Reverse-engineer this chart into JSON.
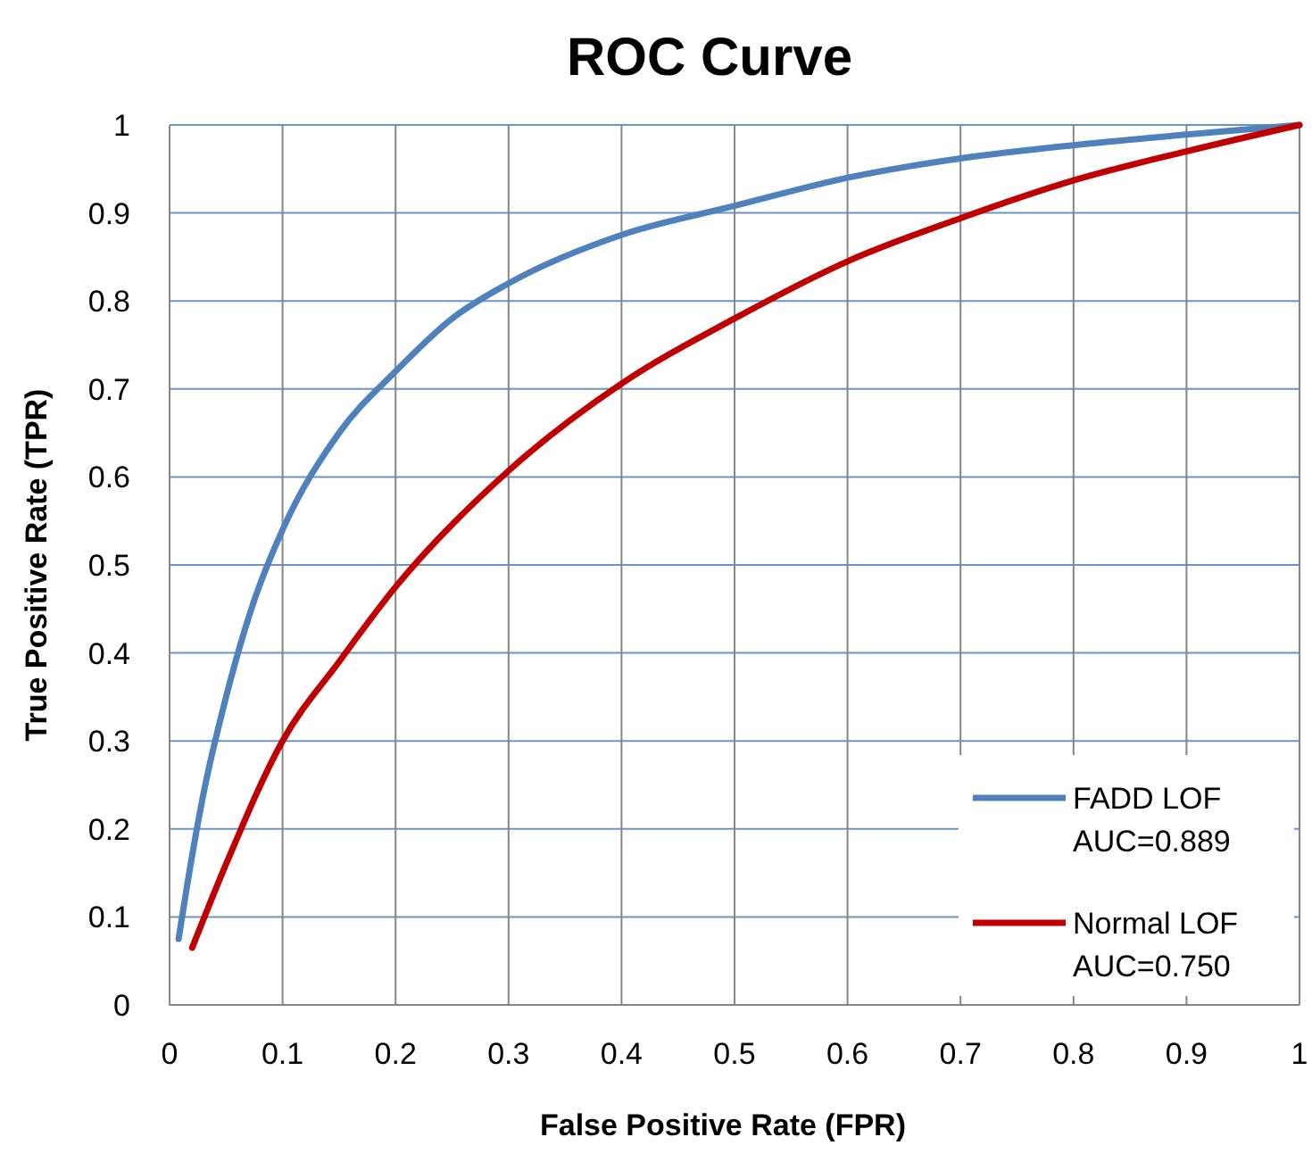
{
  "chart_data": {
    "type": "line",
    "title": "ROC Curve",
    "xlabel": "False Positive Rate (FPR)",
    "ylabel": "True Positive Rate (TPR)",
    "xlim": [
      0,
      1
    ],
    "ylim": [
      0,
      1
    ],
    "xticks": [
      0,
      0.1,
      0.2,
      0.3,
      0.4,
      0.5,
      0.6,
      0.7,
      0.8,
      0.9,
      1
    ],
    "yticks": [
      0,
      0.1,
      0.2,
      0.3,
      0.4,
      0.5,
      0.6,
      0.7,
      0.8,
      0.9,
      1
    ],
    "grid": true,
    "legend": "bottom right",
    "marker": "none",
    "line_style": "solid",
    "series": [
      {
        "name": "FADD LOF\nAUC=0.889",
        "color": "#4f81bd",
        "x": [
          0.008,
          0.02,
          0.03,
          0.05,
          0.075,
          0.1,
          0.15,
          0.2,
          0.25,
          0.3,
          0.4,
          0.5,
          0.6,
          0.7,
          0.8,
          0.9,
          1
        ],
        "values": [
          0.075,
          0.17,
          0.24,
          0.35,
          0.46,
          0.54,
          0.65,
          0.72,
          0.78,
          0.82,
          0.875,
          0.908,
          0.94,
          0.962,
          0.977,
          0.989,
          1
        ]
      },
      {
        "name": "Normal LOF\nAUC=0.750",
        "color": "#c00000",
        "x": [
          0.02,
          0.05,
          0.1,
          0.15,
          0.2,
          0.3,
          0.4,
          0.5,
          0.6,
          0.7,
          0.8,
          0.9,
          1
        ],
        "values": [
          0.065,
          0.16,
          0.3,
          0.39,
          0.475,
          0.607,
          0.706,
          0.78,
          0.845,
          0.894,
          0.937,
          0.97,
          1
        ]
      }
    ]
  }
}
